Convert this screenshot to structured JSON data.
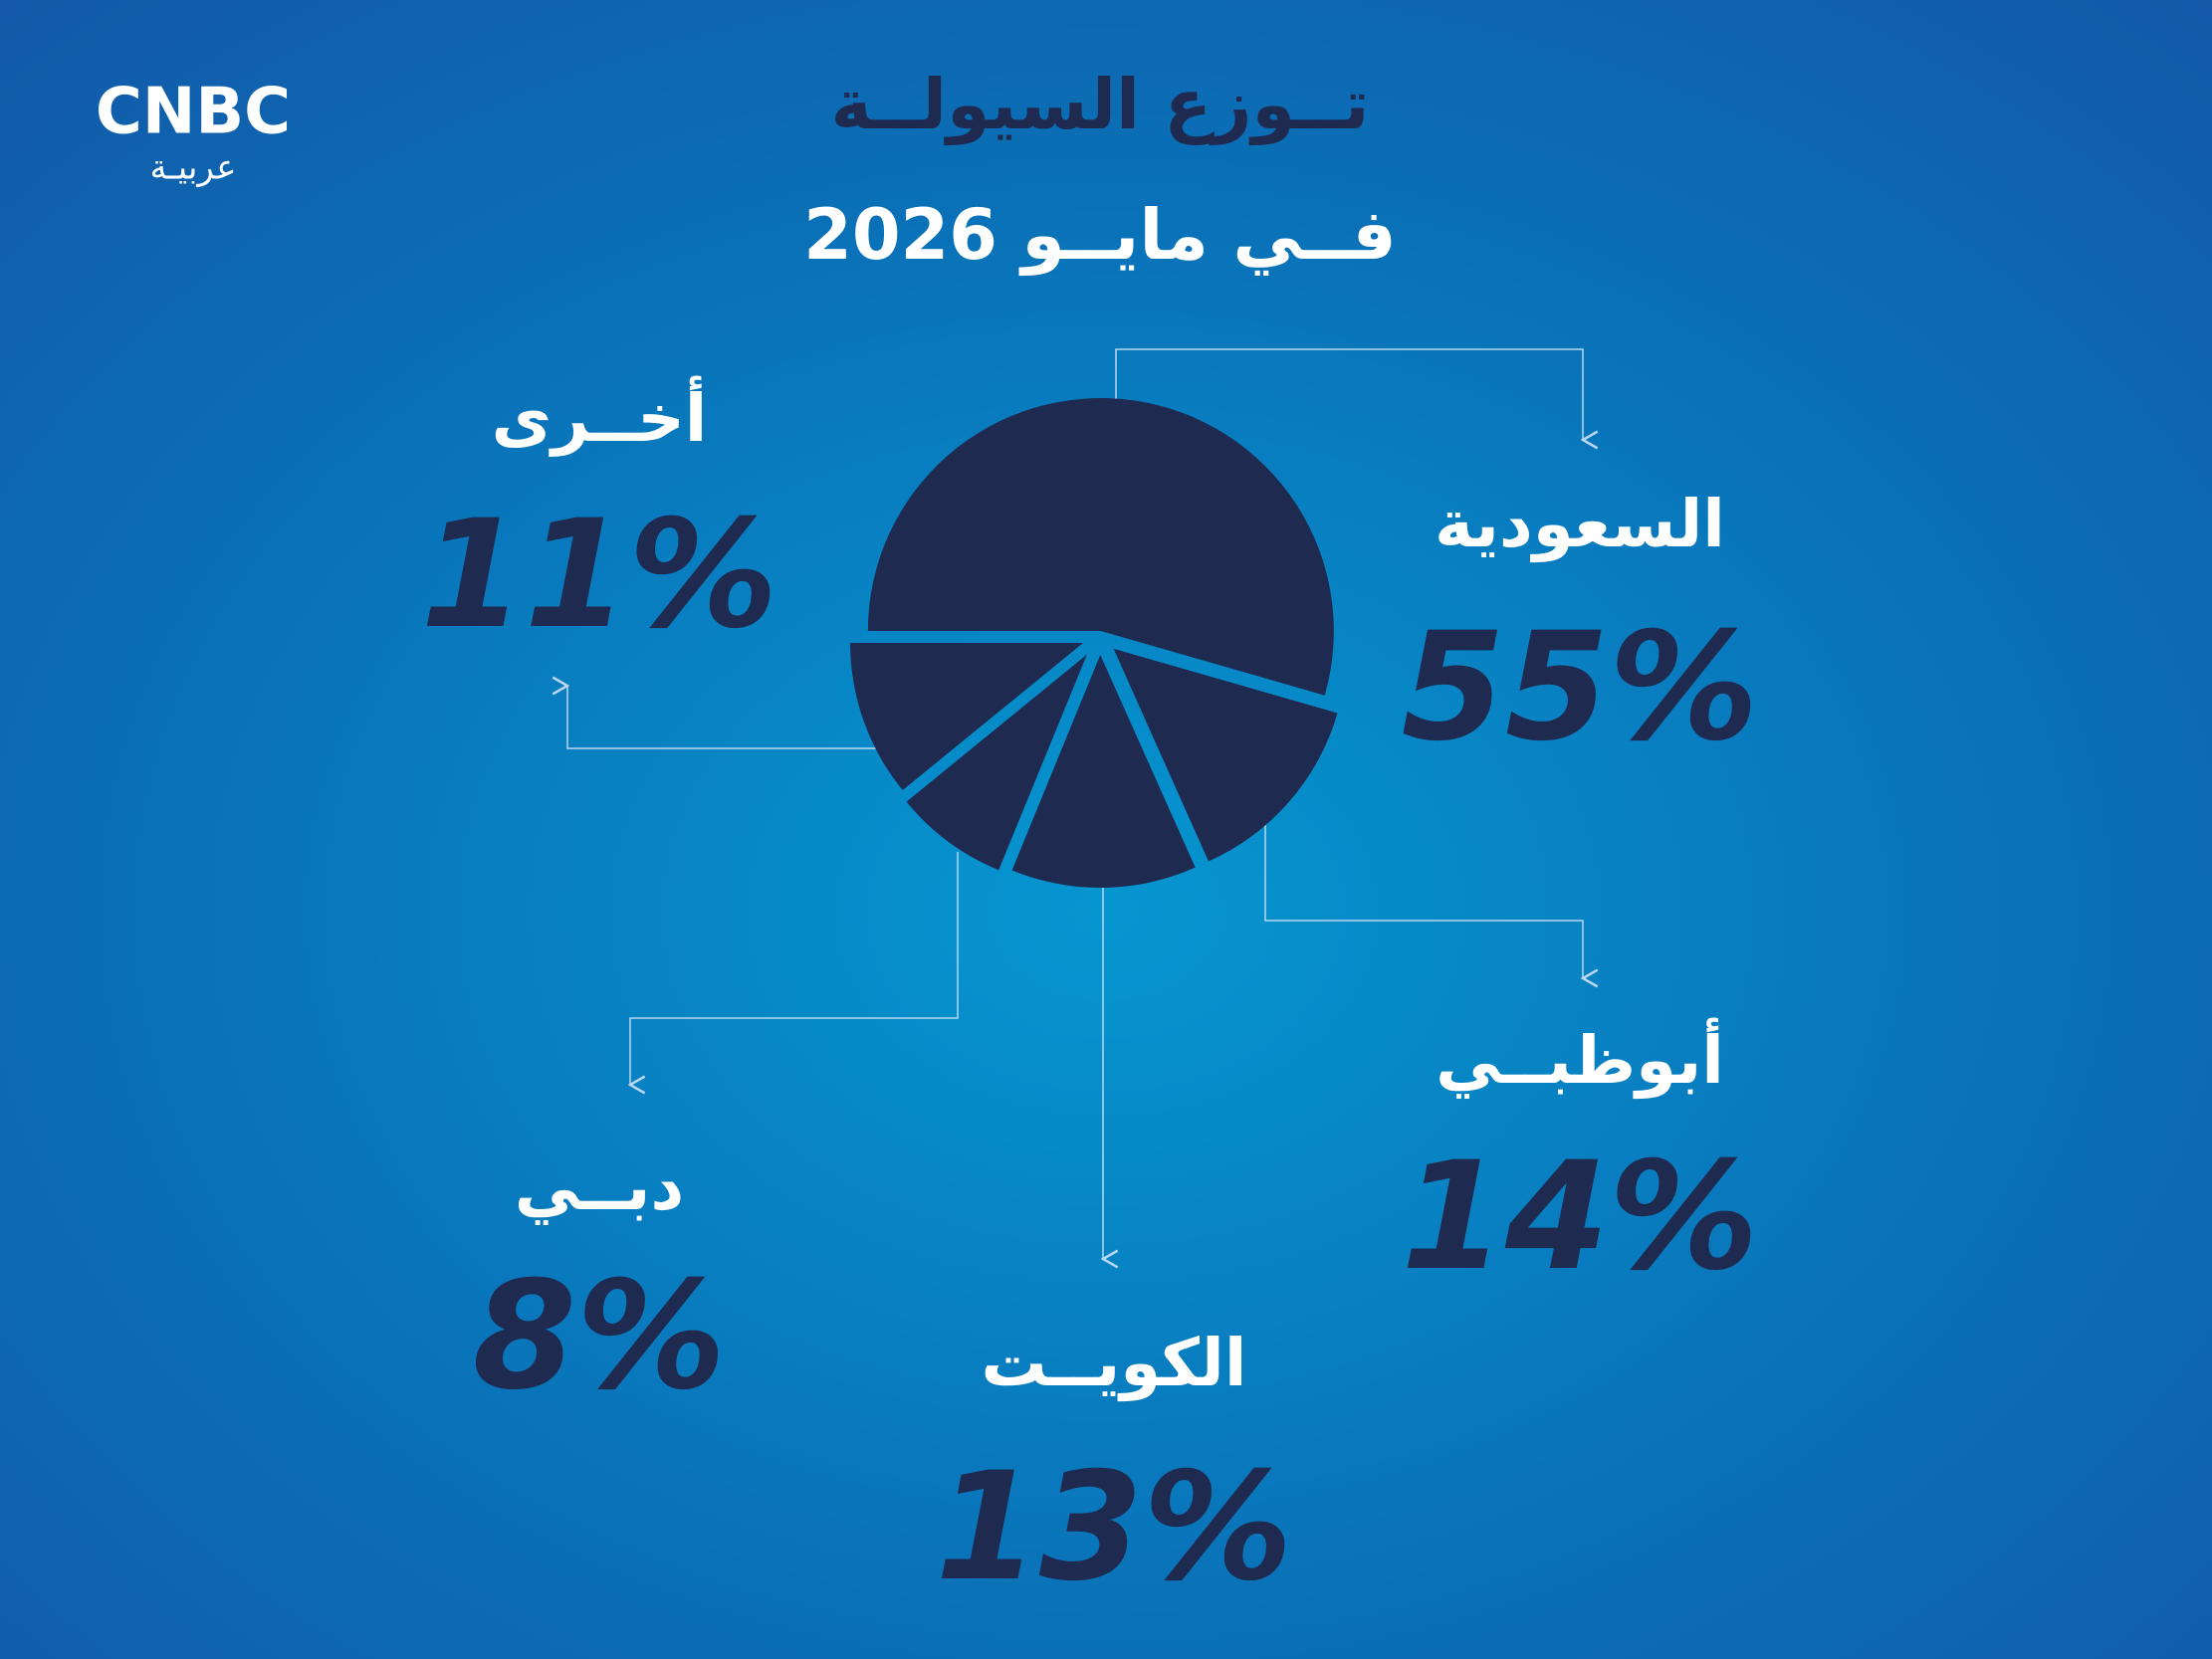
{
  "logo": {
    "text": "CNBC",
    "subtext": "عربيـة"
  },
  "chart_data": {
    "type": "pie",
    "title": "تــوزع السيولــة",
    "subtitle": "فــي مايــو 2026",
    "categories": [
      "السعودية",
      "أبوظبــي",
      "الكويــت",
      "دبــي",
      "أخــرى"
    ],
    "values": [
      55,
      14,
      13,
      8,
      11
    ],
    "value_labels": [
      "55%",
      "14%",
      "13%",
      "8%",
      "11%"
    ],
    "color": "#1f2a50"
  }
}
